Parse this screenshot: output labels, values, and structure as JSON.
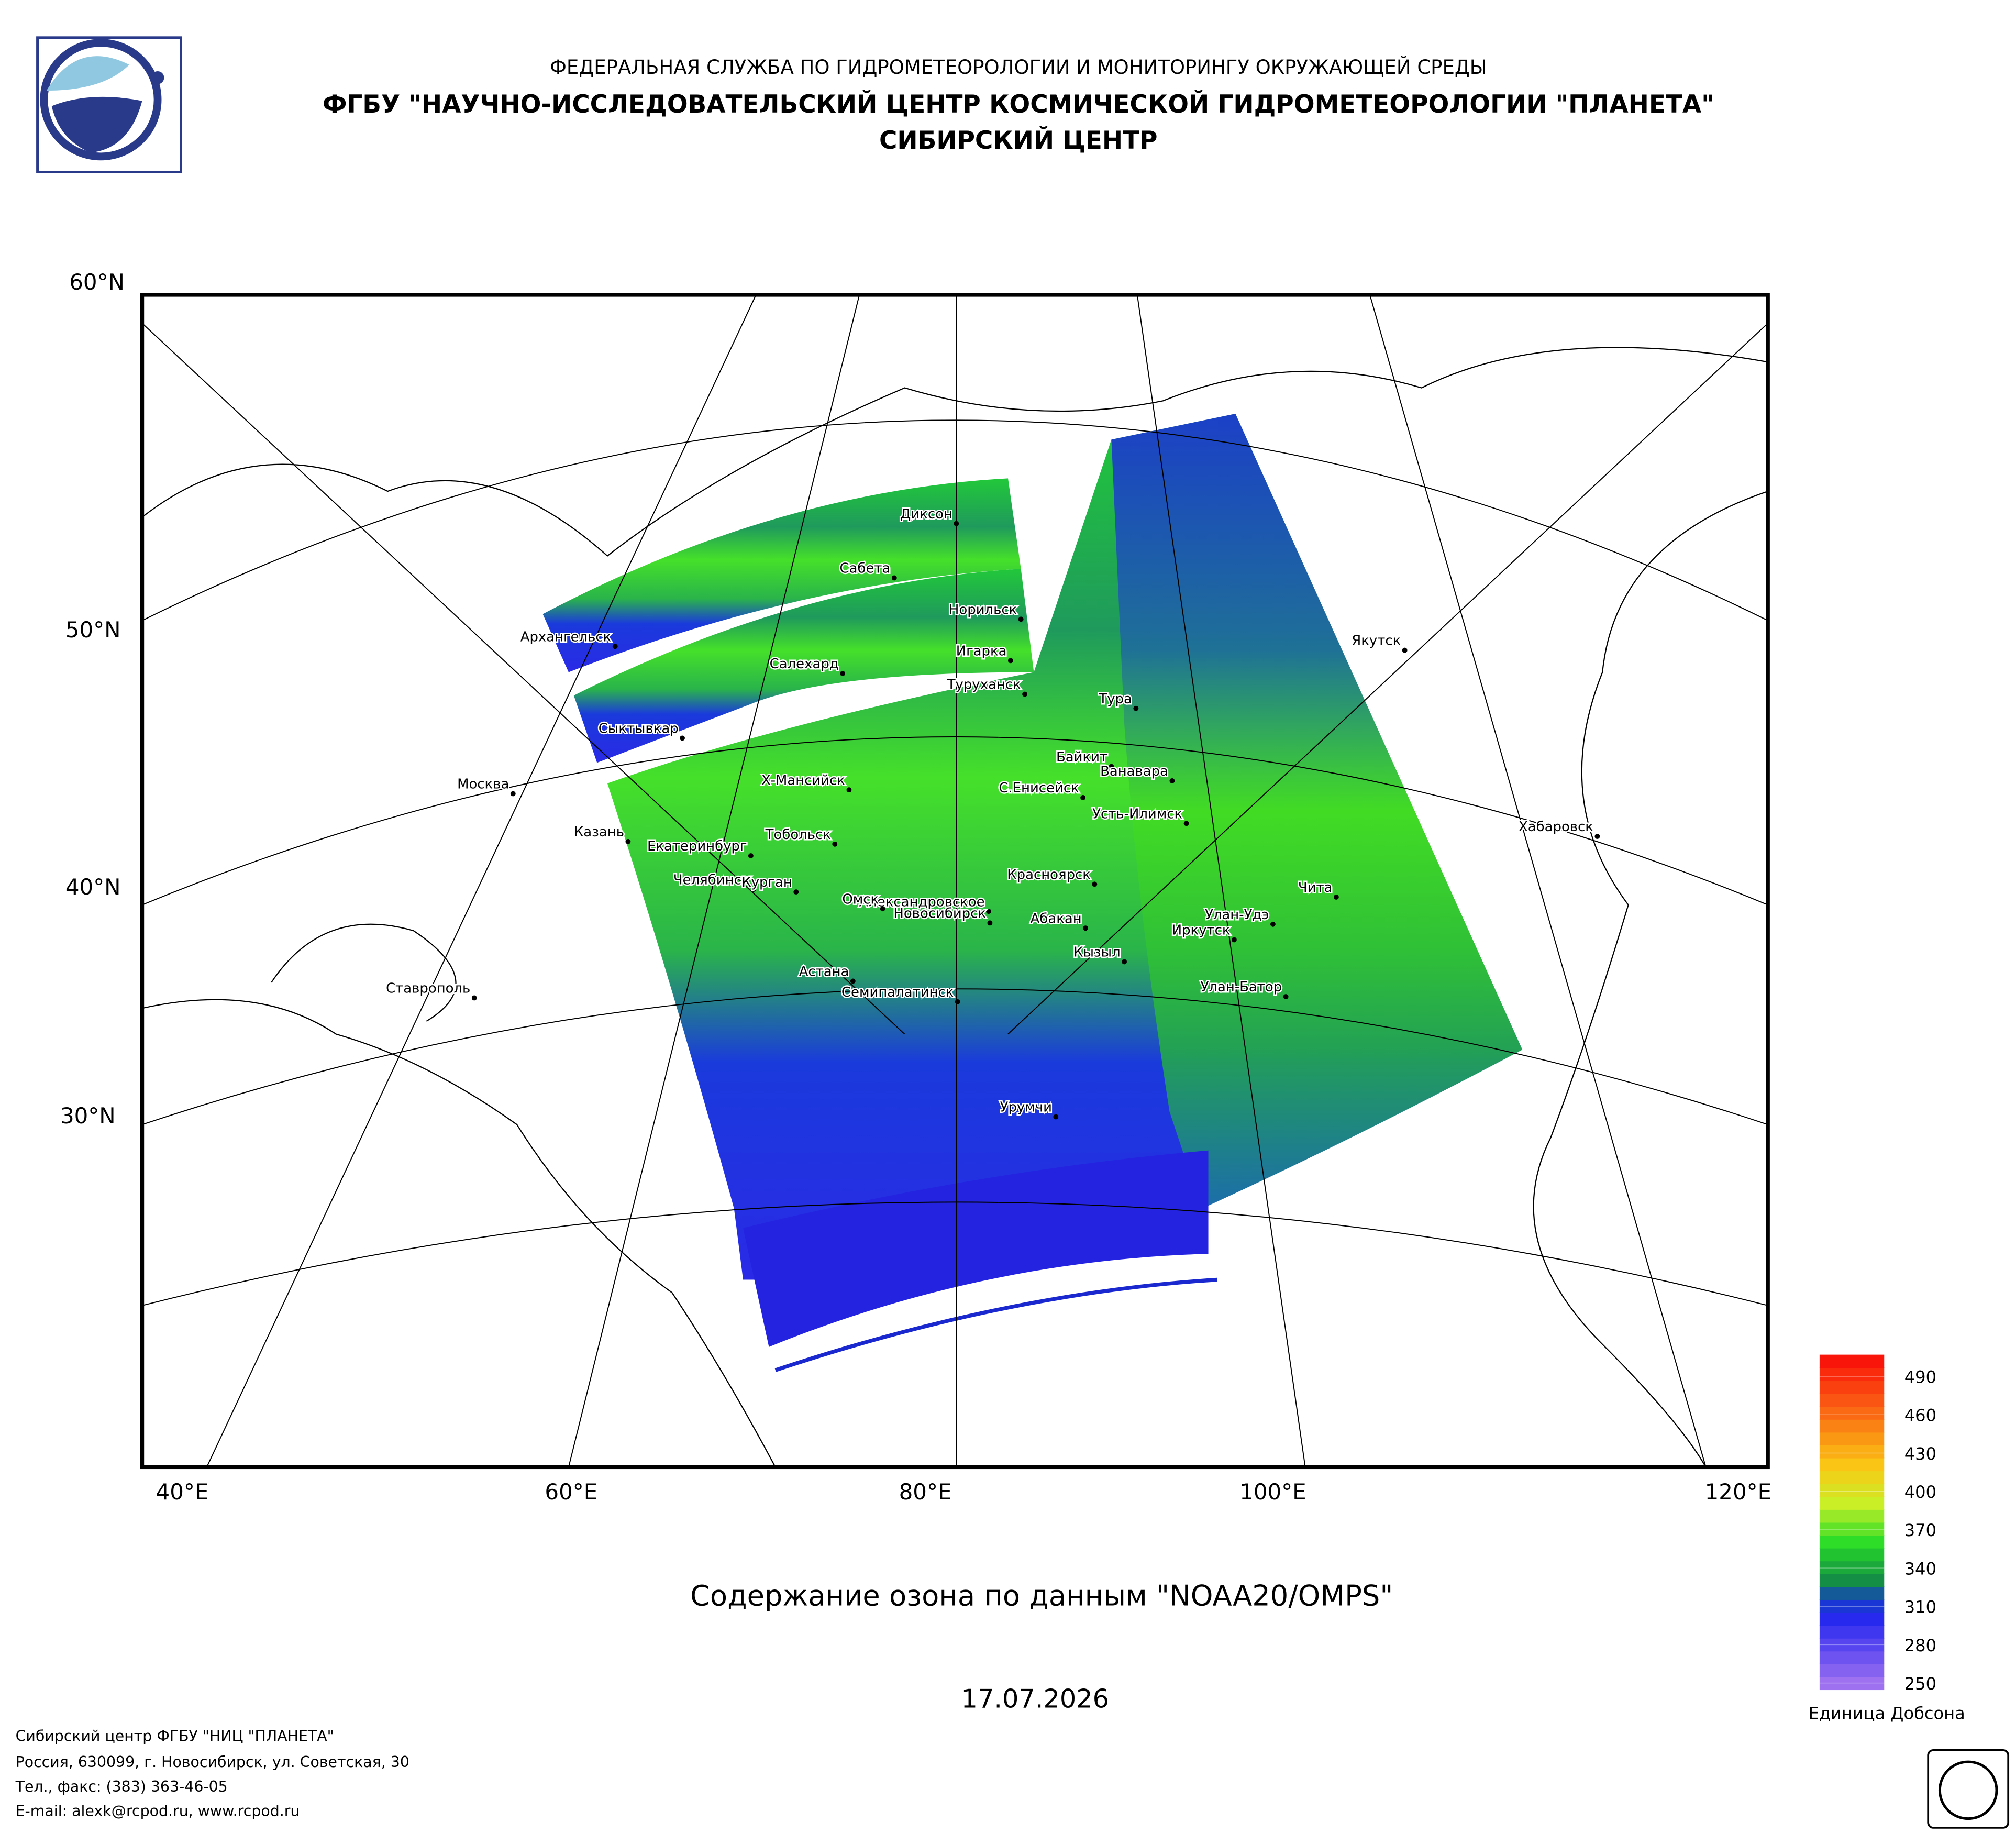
{
  "header": {
    "line1": "ФЕДЕРАЛЬНАЯ СЛУЖБА ПО ГИДРОМЕТЕОРОЛОГИИ И МОНИТОРИНГУ ОКРУЖАЮЩЕЙ СРЕДЫ",
    "line2": "ФГБУ \"НАУЧНО-ИССЛЕДОВАТЕЛЬСКИЙ ЦЕНТР КОСМИЧЕСКОЙ ГИДРОМЕТЕОРОЛОГИИ \"ПЛАНЕТА\"",
    "line3": "СИБИРСКИЙ ЦЕНТР"
  },
  "map": {
    "lat_labels": [
      "60°N",
      "50°N",
      "40°N",
      "30°N"
    ],
    "lon_labels": [
      "40°E",
      "60°E",
      "80°E",
      "100°E",
      "120°E"
    ],
    "cities": [
      "Диксон",
      "Сабета",
      "Норильск",
      "Архангельск",
      "Якутск",
      "Игарка",
      "Салехард",
      "Туруханск",
      "Тура",
      "Сыктывкар",
      "Байкит",
      "Ванавара",
      "Москва",
      "Х-Мансийск",
      "С.Енисейск",
      "Усть-Илимск",
      "Хабаровск",
      "Казань",
      "Тобольск",
      "Екатеринбург",
      "Красноярск",
      "Чита",
      "Челябинск",
      "Курган",
      "Александровское",
      "Омск",
      "Новосибирск",
      "Абакан",
      "Улан-Удэ",
      "Иркутск",
      "Кызыл",
      "Астана",
      "Ставрополь",
      "Улан-Батор",
      "Семипалатинск",
      "Урумчи"
    ]
  },
  "colorbar": {
    "ticks": [
      490,
      460,
      430,
      400,
      370,
      340,
      310,
      280,
      250
    ],
    "lim": [
      245,
      507
    ],
    "unit": "Единица Добсона"
  },
  "title": "Содержание озона по данным \"NOAA20/OMPS\"",
  "date": "17.07.2026",
  "footer": [
    "Сибирский центр ФГБУ \"НИЦ \"ПЛАНЕТА\"",
    "Россия, 630099, г. Новосибирск, ул. Советская, 30",
    "Тел., факс: (383) 363-46-05",
    "E-mail: alexk@rcpod.ru, www.rcpod.ru"
  ]
}
